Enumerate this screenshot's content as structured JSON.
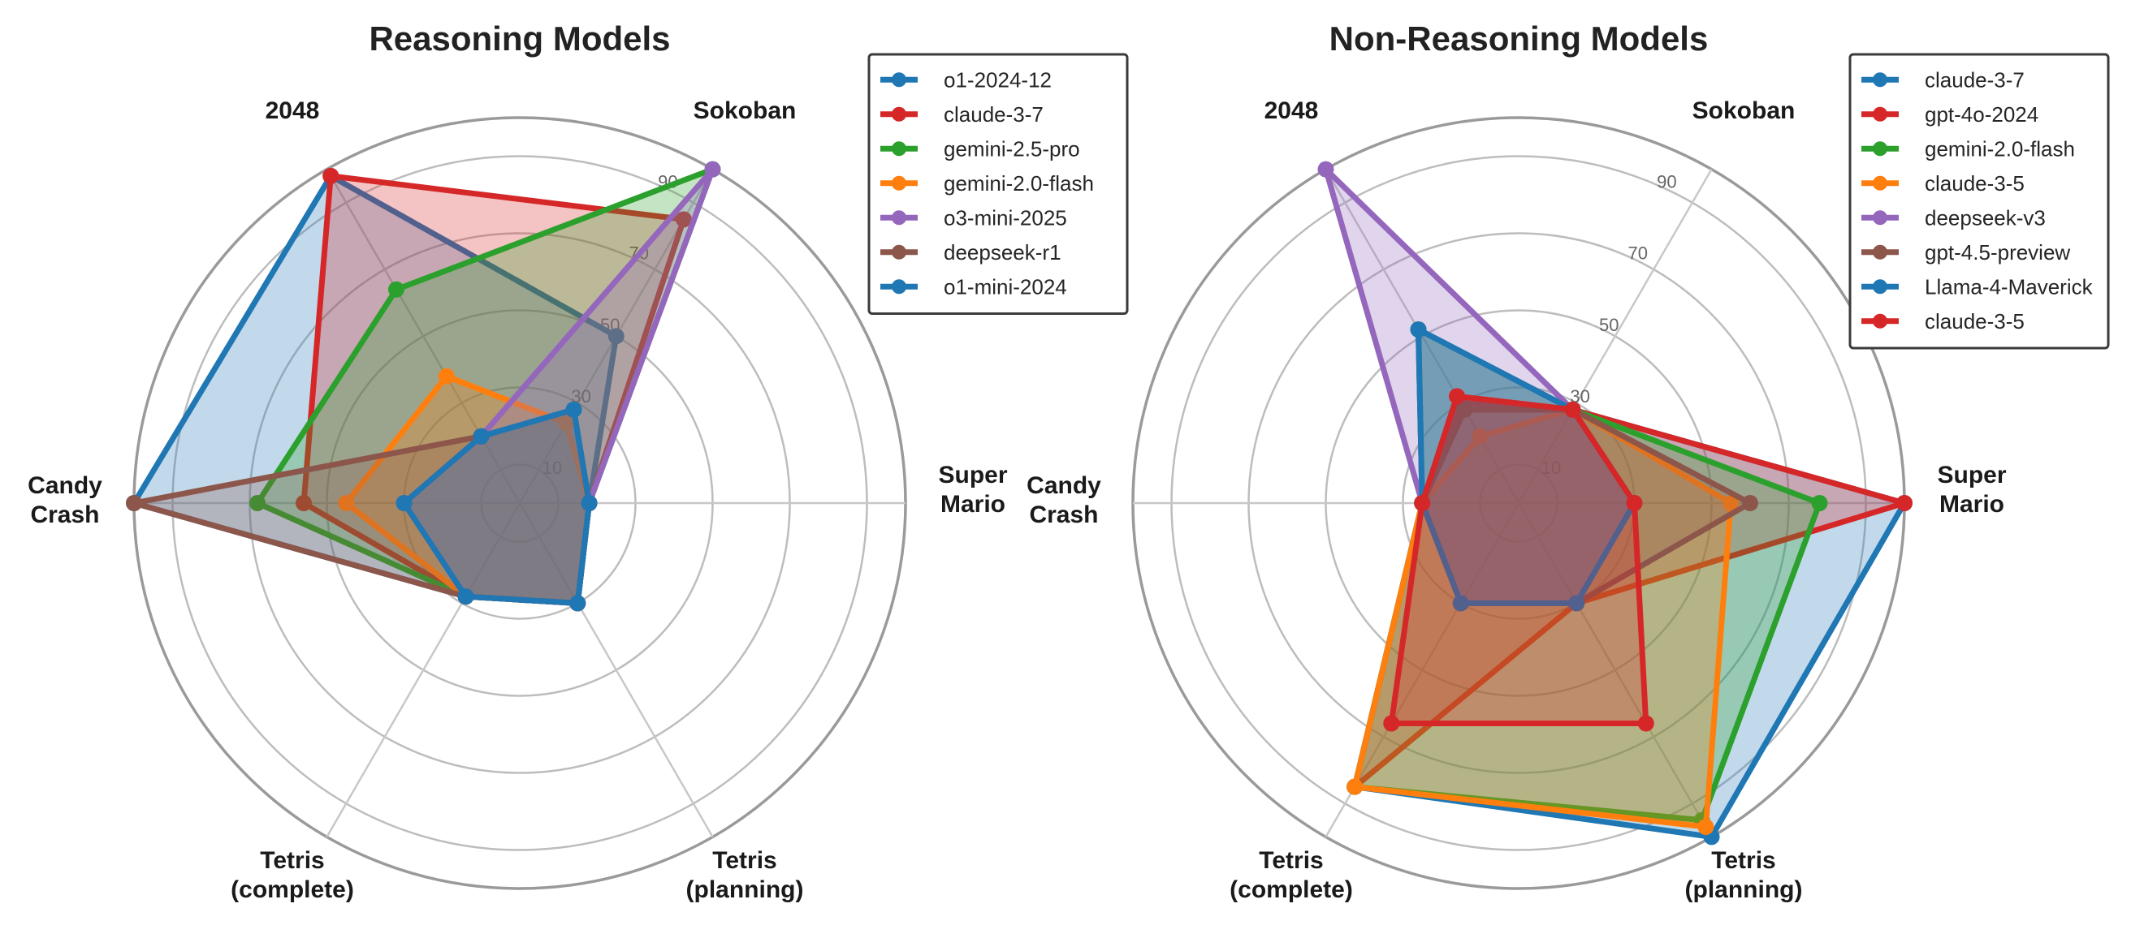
{
  "chart_data": [
    {
      "type": "radar",
      "title": "Reasoning Models",
      "axes": [
        "Super\nMario",
        "Sokoban",
        "2048",
        "Candy\nCrash",
        "Tetris\n(complete)",
        "Tetris\n(planning)"
      ],
      "rlim": [
        0,
        100
      ],
      "rticks": [
        10,
        30,
        50,
        70,
        90
      ],
      "grid": true,
      "legend": "top-right",
      "series": [
        {
          "name": "o1-2024-12",
          "color": "#1f77b4",
          "values": [
            18,
            50,
            98,
            100,
            28,
            30
          ]
        },
        {
          "name": "claude-3-7",
          "color": "#d62728",
          "values": [
            18,
            85,
            98,
            56,
            28,
            30
          ]
        },
        {
          "name": "gemini-2.5-pro",
          "color": "#2ca02c",
          "values": [
            18,
            100,
            64,
            68,
            28,
            30
          ]
        },
        {
          "name": "gemini-2.0-flash",
          "color": "#ff7f0e",
          "values": [
            18,
            24,
            38,
            45,
            28,
            30
          ]
        },
        {
          "name": "o3-mini-2025",
          "color": "#9467bd",
          "values": [
            18,
            100,
            20,
            30,
            28,
            30
          ]
        },
        {
          "name": "deepseek-r1",
          "color": "#8c564b",
          "values": [
            18,
            28,
            20,
            100,
            28,
            30
          ]
        },
        {
          "name": "o1-mini-2024",
          "color": "#1f77b4",
          "values": [
            18,
            28,
            20,
            30,
            28,
            30
          ]
        }
      ]
    },
    {
      "type": "radar",
      "title": "Non-Reasoning Models",
      "axes": [
        "Super\nMario",
        "Sokoban",
        "2048",
        "Candy\nCrash",
        "Tetris\n(complete)",
        "Tetris\n(planning)"
      ],
      "rlim": [
        0,
        100
      ],
      "rticks": [
        10,
        30,
        50,
        70,
        90
      ],
      "grid": true,
      "legend": "top-right",
      "series": [
        {
          "name": "claude-3-7",
          "color": "#1f77b4",
          "values": [
            100,
            28,
            52,
            25,
            85,
            100
          ]
        },
        {
          "name": "gpt-4o-2024",
          "color": "#d62728",
          "values": [
            100,
            28,
            30,
            25,
            85,
            30
          ]
        },
        {
          "name": "gemini-2.0-flash",
          "color": "#2ca02c",
          "values": [
            78,
            28,
            52,
            25,
            85,
            95
          ]
        },
        {
          "name": "claude-3-5",
          "color": "#ff7f0e",
          "values": [
            55,
            28,
            20,
            25,
            85,
            97
          ]
        },
        {
          "name": "deepseek-v3",
          "color": "#9467bd",
          "values": [
            30,
            28,
            100,
            25,
            30,
            30
          ]
        },
        {
          "name": "gpt-4.5-preview",
          "color": "#8c564b",
          "values": [
            60,
            28,
            28,
            25,
            30,
            30
          ]
        },
        {
          "name": "Llama-4-Maverick",
          "color": "#1f77b4",
          "values": [
            30,
            28,
            52,
            25,
            30,
            30
          ]
        },
        {
          "name": "claude-3-5",
          "color": "#d62728",
          "values": [
            30,
            28,
            32,
            25,
            66,
            66
          ]
        }
      ]
    }
  ]
}
